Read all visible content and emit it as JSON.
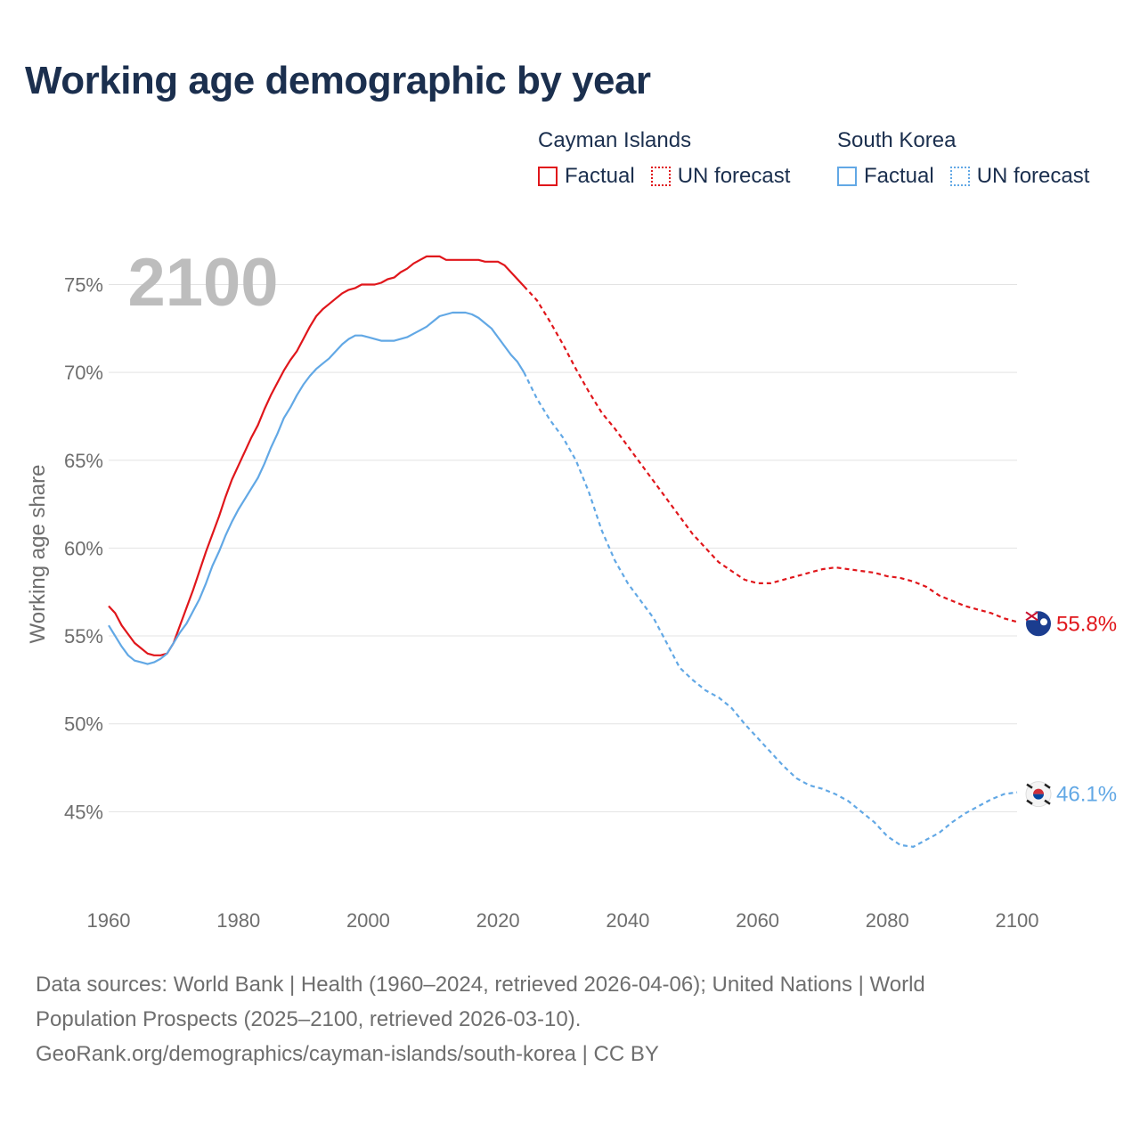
{
  "title": "Working age demographic by year",
  "year_watermark": "2100",
  "legend": {
    "groups": [
      {
        "name": "Cayman Islands",
        "color": "#e0161b",
        "factual": "Factual",
        "forecast": "UN forecast"
      },
      {
        "name": "South Korea",
        "color": "#62a8e5",
        "factual": "Factual",
        "forecast": "UN forecast"
      }
    ]
  },
  "footer": {
    "line1": "Data sources: World Bank | Health (1960–2024, retrieved 2026-04-06); United Nations | World",
    "line2": "Population Prospects (2025–2100, retrieved 2026-03-10).",
    "line3": "GeoRank.org/demographics/cayman-islands/south-korea | CC BY"
  },
  "chart_data": {
    "type": "line",
    "title": "Working age demographic by year",
    "xlabel": "",
    "ylabel": "Working age share",
    "xlim": [
      1960,
      2100
    ],
    "ylim": [
      40,
      77
    ],
    "xticks": [
      1960,
      1980,
      2000,
      2020,
      2040,
      2060,
      2080,
      2100
    ],
    "yticks": [
      45,
      50,
      55,
      60,
      65,
      70,
      75
    ],
    "ytick_labels": [
      "45%",
      "50%",
      "55%",
      "60%",
      "65%",
      "70%",
      "75%"
    ],
    "factual_end_year": 2024,
    "grid": true,
    "series": [
      {
        "name": "Cayman Islands",
        "color": "#e0161b",
        "end_label": "55.8%",
        "x": [
          1960,
          1961,
          1962,
          1963,
          1964,
          1965,
          1966,
          1967,
          1968,
          1969,
          1970,
          1971,
          1972,
          1973,
          1974,
          1975,
          1976,
          1977,
          1978,
          1979,
          1980,
          1981,
          1982,
          1983,
          1984,
          1985,
          1986,
          1987,
          1988,
          1989,
          1990,
          1991,
          1992,
          1993,
          1994,
          1995,
          1996,
          1997,
          1998,
          1999,
          2000,
          2001,
          2002,
          2003,
          2004,
          2005,
          2006,
          2007,
          2008,
          2009,
          2010,
          2011,
          2012,
          2013,
          2014,
          2015,
          2016,
          2017,
          2018,
          2019,
          2020,
          2021,
          2022,
          2023,
          2024,
          2026,
          2028,
          2030,
          2032,
          2034,
          2036,
          2038,
          2040,
          2042,
          2044,
          2046,
          2048,
          2050,
          2052,
          2054,
          2056,
          2058,
          2060,
          2062,
          2064,
          2066,
          2068,
          2070,
          2072,
          2074,
          2076,
          2078,
          2080,
          2082,
          2084,
          2086,
          2088,
          2090,
          2092,
          2094,
          2096,
          2098,
          2100
        ],
        "values": [
          56.7,
          56.3,
          55.6,
          55.1,
          54.6,
          54.3,
          54.0,
          53.9,
          53.9,
          54.0,
          54.6,
          55.6,
          56.6,
          57.6,
          58.7,
          59.8,
          60.8,
          61.8,
          62.9,
          63.9,
          64.7,
          65.5,
          66.3,
          67.0,
          67.9,
          68.7,
          69.4,
          70.1,
          70.7,
          71.2,
          71.9,
          72.6,
          73.2,
          73.6,
          73.9,
          74.2,
          74.5,
          74.7,
          74.8,
          75.0,
          75.0,
          75.0,
          75.1,
          75.3,
          75.4,
          75.7,
          75.9,
          76.2,
          76.4,
          76.6,
          76.6,
          76.6,
          76.4,
          76.4,
          76.4,
          76.4,
          76.4,
          76.4,
          76.3,
          76.3,
          76.3,
          76.1,
          75.7,
          75.3,
          74.9,
          74.1,
          72.9,
          71.6,
          70.2,
          68.9,
          67.7,
          66.8,
          65.8,
          64.8,
          63.8,
          62.8,
          61.8,
          60.8,
          60.0,
          59.2,
          58.7,
          58.2,
          58.0,
          58.0,
          58.2,
          58.4,
          58.6,
          58.8,
          58.9,
          58.8,
          58.7,
          58.6,
          58.4,
          58.3,
          58.1,
          57.8,
          57.3,
          57.0,
          56.7,
          56.5,
          56.3,
          56.0,
          55.8
        ]
      },
      {
        "name": "South Korea",
        "color": "#62a8e5",
        "end_label": "46.1%",
        "x": [
          1960,
          1961,
          1962,
          1963,
          1964,
          1965,
          1966,
          1967,
          1968,
          1969,
          1970,
          1971,
          1972,
          1973,
          1974,
          1975,
          1976,
          1977,
          1978,
          1979,
          1980,
          1981,
          1982,
          1983,
          1984,
          1985,
          1986,
          1987,
          1988,
          1989,
          1990,
          1991,
          1992,
          1993,
          1994,
          1995,
          1996,
          1997,
          1998,
          1999,
          2000,
          2001,
          2002,
          2003,
          2004,
          2005,
          2006,
          2007,
          2008,
          2009,
          2010,
          2011,
          2012,
          2013,
          2014,
          2015,
          2016,
          2017,
          2018,
          2019,
          2020,
          2021,
          2022,
          2023,
          2024,
          2026,
          2028,
          2030,
          2032,
          2034,
          2036,
          2038,
          2040,
          2042,
          2044,
          2046,
          2048,
          2050,
          2052,
          2054,
          2056,
          2058,
          2060,
          2062,
          2064,
          2066,
          2068,
          2070,
          2072,
          2074,
          2076,
          2078,
          2080,
          2082,
          2084,
          2086,
          2088,
          2090,
          2092,
          2094,
          2096,
          2098,
          2100
        ],
        "values": [
          55.6,
          55.0,
          54.4,
          53.9,
          53.6,
          53.5,
          53.4,
          53.5,
          53.7,
          54.0,
          54.6,
          55.2,
          55.7,
          56.4,
          57.1,
          58.0,
          59.0,
          59.8,
          60.7,
          61.5,
          62.2,
          62.8,
          63.4,
          64.0,
          64.8,
          65.7,
          66.5,
          67.4,
          68.0,
          68.7,
          69.3,
          69.8,
          70.2,
          70.5,
          70.8,
          71.2,
          71.6,
          71.9,
          72.1,
          72.1,
          72.0,
          71.9,
          71.8,
          71.8,
          71.8,
          71.9,
          72.0,
          72.2,
          72.4,
          72.6,
          72.9,
          73.2,
          73.3,
          73.4,
          73.4,
          73.4,
          73.3,
          73.1,
          72.8,
          72.5,
          72.0,
          71.5,
          71.0,
          70.6,
          70.0,
          68.5,
          67.3,
          66.3,
          65.0,
          63.2,
          61.0,
          59.3,
          58.0,
          57.0,
          56.0,
          54.6,
          53.2,
          52.5,
          51.9,
          51.5,
          50.9,
          50.0,
          49.2,
          48.4,
          47.6,
          46.9,
          46.5,
          46.3,
          46.0,
          45.6,
          45.0,
          44.4,
          43.6,
          43.1,
          43.0,
          43.4,
          43.8,
          44.4,
          44.9,
          45.3,
          45.7,
          46.0,
          46.1
        ]
      }
    ]
  }
}
